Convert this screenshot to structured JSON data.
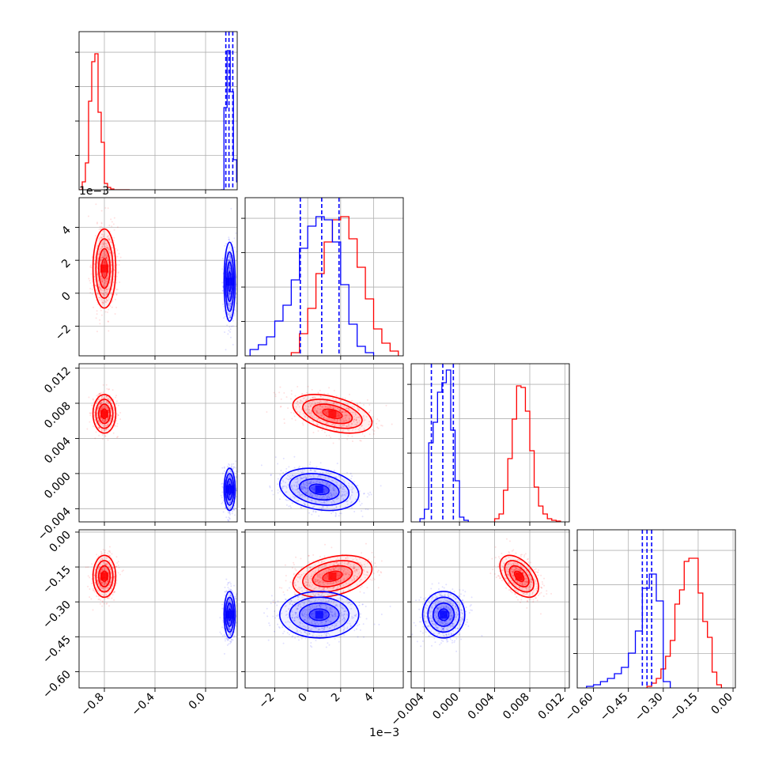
{
  "colors": {
    "red": "#ff0000",
    "blue": "#0000ff",
    "grid": "#b0b0b0",
    "frame": "#000000"
  },
  "offset_labels": {
    "param2_y": "1e−3",
    "param2_x": "1e−3"
  },
  "chart_data": {
    "type": "corner",
    "parameters": [
      {
        "id": "p0",
        "range": [
          -1.0,
          0.25
        ],
        "ticks": [
          -0.8,
          -0.4,
          0.0
        ],
        "tick_labels": [
          "−0.8",
          "−0.4",
          "0.0"
        ]
      },
      {
        "id": "p1",
        "range": [
          -3.8,
          5.8
        ],
        "ticks": [
          -2,
          0,
          2,
          4
        ],
        "tick_labels": [
          "−2",
          "0",
          "2",
          "4"
        ],
        "offset": "1e−3"
      },
      {
        "id": "p2",
        "range": [
          -0.0055,
          0.0125
        ],
        "ticks": [
          -0.004,
          0.0,
          0.004,
          0.008,
          0.012
        ],
        "tick_labels": [
          "−0.004",
          "0.000",
          "0.004",
          "0.008",
          "0.012"
        ]
      },
      {
        "id": "p3",
        "range": [
          -0.67,
          0.01
        ],
        "ticks": [
          -0.6,
          -0.45,
          -0.3,
          -0.15,
          0.0
        ],
        "tick_labels": [
          "−0.60",
          "−0.45",
          "−0.30",
          "−0.15",
          "0.00"
        ]
      }
    ],
    "series": [
      {
        "color": "red",
        "centers": [
          -0.8,
          1.5,
          0.0068,
          -0.19
        ],
        "sigma": [
          0.045,
          1.2,
          0.0011,
          0.045
        ],
        "correlations": {
          "p2_p1": -0.45,
          "p3_p1": 0.35,
          "p3_p2": -0.5
        },
        "histograms": {
          "p0": {
            "bins": [
              -1.0,
              -0.975,
              -0.95,
              -0.925,
              -0.9,
              -0.875,
              -0.85,
              -0.825,
              -0.8,
              -0.775,
              -0.75,
              -0.725,
              -0.7,
              -0.675,
              -0.65,
              -0.625,
              -0.6
            ],
            "counts": [
              0,
              0.05,
              0.17,
              0.56,
              0.81,
              0.86,
              0.49,
              0.3,
              0.04,
              0.015,
              0.005,
              0,
              0,
              0,
              0,
              0
            ]
          },
          "p1": {
            "bins": [
              -1.0,
              -0.5,
              0.0,
              0.5,
              1.0,
              1.5,
              2.0,
              2.5,
              3.0,
              3.5,
              4.0,
              4.5,
              5.0,
              5.5
            ],
            "counts": [
              0.02,
              0.14,
              0.3,
              0.52,
              0.72,
              0.86,
              0.88,
              0.74,
              0.56,
              0.36,
              0.17,
              0.08,
              0.03
            ]
          },
          "p2": {
            "bins": [
              0.004,
              0.0045,
              0.005,
              0.0055,
              0.006,
              0.0065,
              0.007,
              0.0075,
              0.008,
              0.0085,
              0.009,
              0.0095,
              0.01,
              0.0105,
              0.011,
              0.0115
            ],
            "counts": [
              0.02,
              0.05,
              0.2,
              0.4,
              0.65,
              0.86,
              0.85,
              0.7,
              0.45,
              0.22,
              0.1,
              0.05,
              0.02,
              0.01,
              0.005
            ]
          },
          "p3": {
            "bins": [
              -0.37,
              -0.35,
              -0.33,
              -0.31,
              -0.29,
              -0.27,
              -0.25,
              -0.23,
              -0.21,
              -0.19,
              -0.17,
              -0.15,
              -0.13,
              -0.11,
              -0.09,
              -0.07,
              -0.05
            ],
            "counts": [
              0.01,
              0.03,
              0.06,
              0.12,
              0.2,
              0.3,
              0.53,
              0.62,
              0.8,
              0.82,
              0.82,
              0.6,
              0.42,
              0.32,
              0.1,
              0.02
            ]
          }
        }
      },
      {
        "color": "blue",
        "centers": [
          0.19,
          0.7,
          -0.0018,
          -0.355
        ],
        "sigma": [
          0.022,
          1.2,
          0.0012,
          0.05
        ],
        "correlations": {
          "p2_p1": -0.25,
          "p3_p1": 0.0,
          "p3_p2": 0.0
        },
        "quantiles": {
          "p0": [
            0.16,
            0.185,
            0.215
          ],
          "p1": [
            -0.45,
            0.85,
            1.9
          ],
          "p2": [
            -0.0032,
            -0.0019,
            -0.0007
          ],
          "p3": [
            -0.39,
            -0.37,
            -0.35
          ]
        },
        "histograms": {
          "p0": {
            "bins": [
              0.12,
              0.145,
              0.17,
              0.195,
              0.22,
              0.245,
              0.27
            ],
            "counts": [
              0.0,
              0.52,
              0.88,
              0.62,
              0.19,
              0.05
            ]
          },
          "p1": {
            "bins": [
              -3.5,
              -3.0,
              -2.5,
              -2.0,
              -1.5,
              -1.0,
              -0.5,
              0.0,
              0.5,
              1.0,
              1.5,
              2.0,
              2.5,
              3.0,
              3.5,
              4.0
            ],
            "counts": [
              0.04,
              0.07,
              0.12,
              0.22,
              0.32,
              0.48,
              0.68,
              0.82,
              0.88,
              0.86,
              0.72,
              0.45,
              0.2,
              0.06,
              0.02
            ]
          },
          "p2": {
            "bins": [
              -0.0045,
              -0.004,
              -0.0035,
              -0.003,
              -0.0025,
              -0.002,
              -0.0015,
              -0.001,
              -0.0005,
              0.0,
              0.0005,
              0.001
            ],
            "counts": [
              0.02,
              0.08,
              0.5,
              0.63,
              0.82,
              0.88,
              0.96,
              0.58,
              0.26,
              0.03,
              0.01
            ]
          },
          "p3": {
            "bins": [
              -0.63,
              -0.6,
              -0.57,
              -0.54,
              -0.51,
              -0.48,
              -0.45,
              -0.42,
              -0.39,
              -0.36,
              -0.33,
              -0.3,
              -0.27
            ],
            "counts": [
              0.01,
              0.02,
              0.04,
              0.06,
              0.09,
              0.13,
              0.22,
              0.36,
              0.63,
              0.72,
              0.55,
              0.04
            ]
          }
        }
      }
    ]
  }
}
